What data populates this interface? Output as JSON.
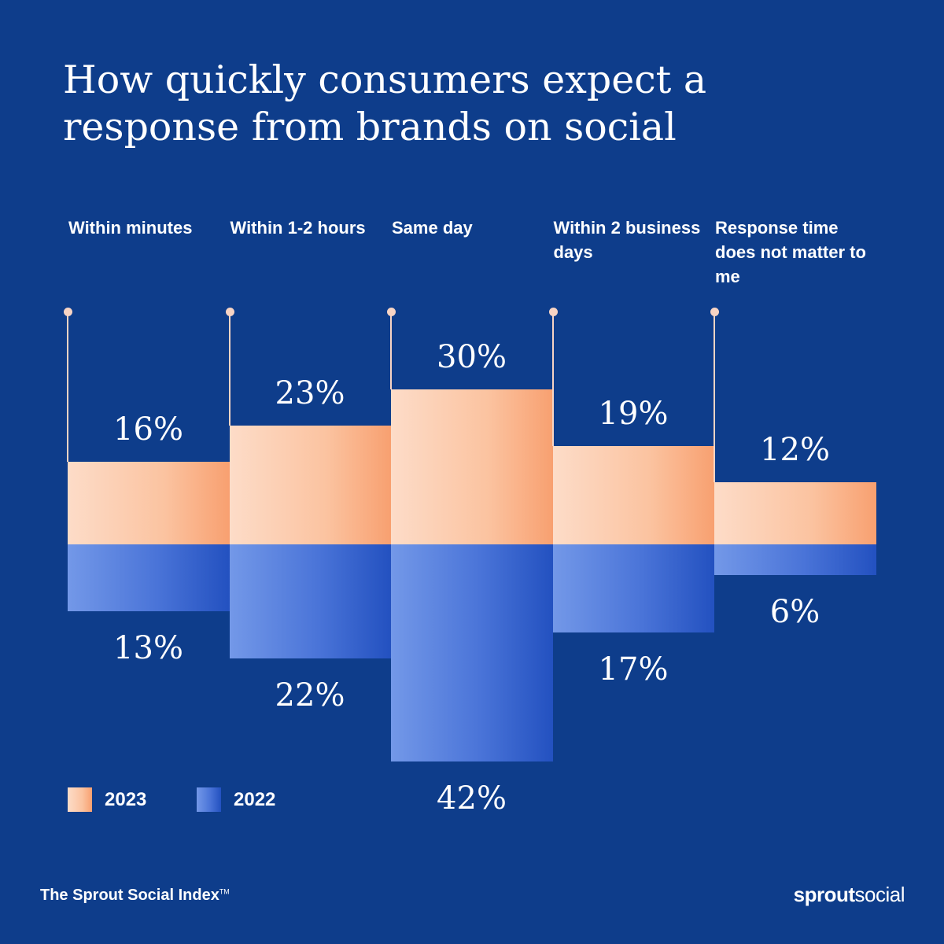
{
  "chart_data": {
    "type": "bar",
    "title": "How quickly consumers expect a response from brands on social",
    "categories": [
      "Within minutes",
      "Within 1-2 hours",
      "Same day",
      "Within 2 business days",
      "Response time does not matter to me"
    ],
    "series": [
      {
        "name": "2023",
        "values": [
          16,
          23,
          30,
          19,
          12
        ],
        "labels": [
          "16%",
          "23%",
          "30%",
          "19%",
          "12%"
        ],
        "color": "#f9a878",
        "direction": "up"
      },
      {
        "name": "2022",
        "values": [
          13,
          22,
          42,
          17,
          6
        ],
        "labels": [
          "13%",
          "22%",
          "42%",
          "17%",
          "6%"
        ],
        "color": "#2f5cc8",
        "direction": "down"
      }
    ],
    "unit": "%",
    "legend": "bottom-left",
    "grid": false
  },
  "colors": {
    "background": "#0e3d8b",
    "accent_2023": "#f9a878",
    "accent_2022": "#2f5cc8"
  },
  "footer": {
    "source": "The Sprout Social Index",
    "tm": "TM",
    "logo_bold": "sprout",
    "logo_light": "social"
  }
}
